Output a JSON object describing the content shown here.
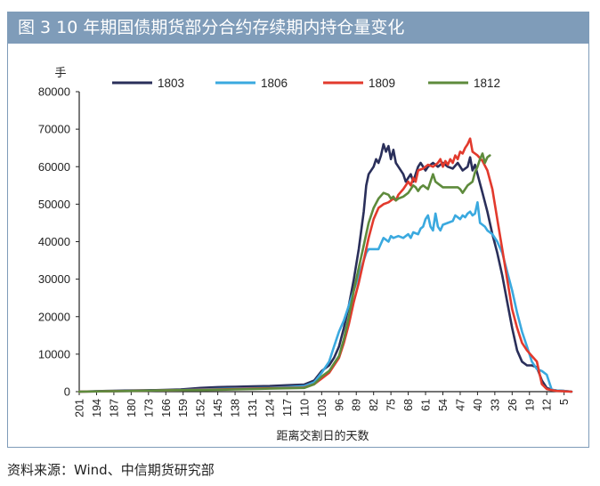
{
  "header": {
    "title": "图 3  10 年期国债期货部分合约存续期内持仓量变化"
  },
  "footer": {
    "source": "资料来源：Wind、中信期货研究部"
  },
  "chart_data": {
    "type": "line",
    "title": "图 3  10 年期国债期货部分合约存续期内持仓量变化",
    "xlabel": "距离交割日的天数",
    "ylabel": "手",
    "ylim": [
      0,
      80000
    ],
    "yticks": [
      "0",
      "10000",
      "20000",
      "30000",
      "40000",
      "50000",
      "60000",
      "70000",
      "80000"
    ],
    "xlim": [
      201,
      2
    ],
    "xticks": [
      "201",
      "194",
      "187",
      "180",
      "173",
      "166",
      "159",
      "152",
      "145",
      "138",
      "131",
      "124",
      "117",
      "110",
      "103",
      "96",
      "89",
      "82",
      "75",
      "68",
      "61",
      "54",
      "47",
      "40",
      "33",
      "26",
      "19",
      "12",
      "5"
    ],
    "legend_position": "top",
    "grid": false,
    "series": [
      {
        "name": "1803",
        "color": "#2a2f5a",
        "points": [
          [
            201,
            0
          ],
          [
            190,
            200
          ],
          [
            180,
            300
          ],
          [
            170,
            400
          ],
          [
            160,
            600
          ],
          [
            152,
            1000
          ],
          [
            145,
            1200
          ],
          [
            138,
            1300
          ],
          [
            131,
            1400
          ],
          [
            124,
            1500
          ],
          [
            117,
            1700
          ],
          [
            110,
            1900
          ],
          [
            106,
            3000
          ],
          [
            103,
            5500
          ],
          [
            100,
            7000
          ],
          [
            98,
            9000
          ],
          [
            96,
            12000
          ],
          [
            94,
            17000
          ],
          [
            92,
            23000
          ],
          [
            90,
            30000
          ],
          [
            88,
            38000
          ],
          [
            86,
            48000
          ],
          [
            85,
            55000
          ],
          [
            84,
            58000
          ],
          [
            82,
            60000
          ],
          [
            81,
            62000
          ],
          [
            80,
            61000
          ],
          [
            79,
            63000
          ],
          [
            78,
            66000
          ],
          [
            77,
            64000
          ],
          [
            76,
            65500
          ],
          [
            75,
            62000
          ],
          [
            74,
            64500
          ],
          [
            73,
            61000
          ],
          [
            72,
            60000
          ],
          [
            70,
            58000
          ],
          [
            69,
            56000
          ],
          [
            68,
            57000
          ],
          [
            67,
            58000
          ],
          [
            66,
            56000
          ],
          [
            65,
            58000
          ],
          [
            64,
            60000
          ],
          [
            63,
            61000
          ],
          [
            62,
            60000
          ],
          [
            61,
            59000
          ],
          [
            60,
            60000
          ],
          [
            58,
            61000
          ],
          [
            56,
            60000
          ],
          [
            54,
            61000
          ],
          [
            52,
            60000
          ],
          [
            50,
            59500
          ],
          [
            48,
            61000
          ],
          [
            46,
            59000
          ],
          [
            44,
            60000
          ],
          [
            43,
            62500
          ],
          [
            42,
            59000
          ],
          [
            41,
            60500
          ],
          [
            40,
            58000
          ],
          [
            38,
            53000
          ],
          [
            36,
            48000
          ],
          [
            34,
            42000
          ],
          [
            32,
            37000
          ],
          [
            30,
            31000
          ],
          [
            28,
            24000
          ],
          [
            26,
            17000
          ],
          [
            24,
            11000
          ],
          [
            22,
            8000
          ],
          [
            20,
            7000
          ],
          [
            18,
            7000
          ],
          [
            16,
            6500
          ],
          [
            14,
            3000
          ],
          [
            12,
            1000
          ],
          [
            10,
            500
          ],
          [
            8,
            300
          ],
          [
            5,
            200
          ],
          [
            2,
            0
          ]
        ]
      },
      {
        "name": "1806",
        "color": "#3aa9df",
        "points": [
          [
            201,
            0
          ],
          [
            190,
            100
          ],
          [
            180,
            200
          ],
          [
            170,
            300
          ],
          [
            160,
            400
          ],
          [
            152,
            600
          ],
          [
            145,
            700
          ],
          [
            138,
            800
          ],
          [
            131,
            900
          ],
          [
            124,
            1000
          ],
          [
            117,
            1200
          ],
          [
            110,
            1500
          ],
          [
            106,
            2500
          ],
          [
            103,
            5000
          ],
          [
            100,
            8000
          ],
          [
            98,
            12000
          ],
          [
            96,
            16000
          ],
          [
            94,
            19000
          ],
          [
            92,
            23000
          ],
          [
            90,
            27000
          ],
          [
            88,
            31000
          ],
          [
            86,
            35000
          ],
          [
            85,
            37000
          ],
          [
            84,
            38000
          ],
          [
            82,
            38000
          ],
          [
            80,
            38000
          ],
          [
            79,
            39500
          ],
          [
            78,
            41000
          ],
          [
            76,
            40000
          ],
          [
            75,
            41500
          ],
          [
            74,
            41000
          ],
          [
            72,
            41500
          ],
          [
            70,
            41000
          ],
          [
            68,
            42000
          ],
          [
            67,
            41000
          ],
          [
            66,
            42500
          ],
          [
            64,
            42000
          ],
          [
            63,
            43500
          ],
          [
            62,
            44000
          ],
          [
            61,
            46000
          ],
          [
            60,
            47000
          ],
          [
            59,
            44000
          ],
          [
            58,
            43000
          ],
          [
            57,
            47500
          ],
          [
            56,
            44000
          ],
          [
            55,
            43000
          ],
          [
            54,
            44500
          ],
          [
            52,
            45000
          ],
          [
            50,
            45500
          ],
          [
            49,
            47000
          ],
          [
            48,
            46500
          ],
          [
            47,
            46000
          ],
          [
            46,
            47000
          ],
          [
            45,
            46500
          ],
          [
            44,
            47500
          ],
          [
            43,
            48000
          ],
          [
            42,
            47000
          ],
          [
            41,
            47500
          ],
          [
            40,
            50500
          ],
          [
            39,
            45000
          ],
          [
            38,
            44500
          ],
          [
            37,
            44000
          ],
          [
            36,
            43000
          ],
          [
            34,
            42000
          ],
          [
            32,
            40000
          ],
          [
            30,
            37000
          ],
          [
            28,
            32000
          ],
          [
            26,
            27000
          ],
          [
            24,
            21000
          ],
          [
            22,
            16000
          ],
          [
            20,
            12000
          ],
          [
            18,
            8000
          ],
          [
            16,
            6000
          ],
          [
            14,
            5500
          ],
          [
            12,
            4500
          ],
          [
            10,
            500
          ],
          [
            8,
            300
          ],
          [
            5,
            200
          ],
          [
            2,
            0
          ]
        ]
      },
      {
        "name": "1809",
        "color": "#e23a2d",
        "points": [
          [
            201,
            0
          ],
          [
            190,
            100
          ],
          [
            180,
            200
          ],
          [
            170,
            300
          ],
          [
            160,
            400
          ],
          [
            152,
            500
          ],
          [
            145,
            600
          ],
          [
            138,
            700
          ],
          [
            131,
            800
          ],
          [
            124,
            900
          ],
          [
            117,
            1000
          ],
          [
            110,
            1100
          ],
          [
            106,
            2000
          ],
          [
            103,
            3500
          ],
          [
            100,
            5000
          ],
          [
            98,
            7000
          ],
          [
            96,
            9000
          ],
          [
            94,
            13000
          ],
          [
            92,
            18000
          ],
          [
            90,
            24000
          ],
          [
            88,
            29000
          ],
          [
            86,
            35000
          ],
          [
            84,
            41000
          ],
          [
            82,
            46000
          ],
          [
            80,
            49000
          ],
          [
            78,
            50000
          ],
          [
            76,
            50500
          ],
          [
            74,
            51500
          ],
          [
            73,
            51000
          ],
          [
            72,
            52500
          ],
          [
            70,
            54000
          ],
          [
            68,
            56000
          ],
          [
            67,
            55000
          ],
          [
            66,
            57000
          ],
          [
            65,
            56000
          ],
          [
            64,
            59000
          ],
          [
            62,
            59500
          ],
          [
            60,
            60500
          ],
          [
            58,
            60000
          ],
          [
            56,
            61000
          ],
          [
            55,
            62000
          ],
          [
            54,
            60000
          ],
          [
            53,
            61500
          ],
          [
            52,
            60500
          ],
          [
            51,
            62000
          ],
          [
            50,
            61000
          ],
          [
            49,
            63000
          ],
          [
            48,
            62000
          ],
          [
            47,
            64000
          ],
          [
            46,
            63500
          ],
          [
            45,
            65000
          ],
          [
            44,
            66000
          ],
          [
            43,
            67500
          ],
          [
            42,
            64000
          ],
          [
            41,
            63500
          ],
          [
            40,
            63000
          ],
          [
            38,
            61500
          ],
          [
            36,
            59000
          ],
          [
            34,
            54000
          ],
          [
            32,
            46000
          ],
          [
            30,
            38000
          ],
          [
            28,
            30000
          ],
          [
            26,
            22000
          ],
          [
            24,
            17000
          ],
          [
            22,
            13000
          ],
          [
            20,
            11000
          ],
          [
            18,
            9500
          ],
          [
            16,
            8000
          ],
          [
            14,
            2000
          ],
          [
            12,
            700
          ],
          [
            10,
            400
          ],
          [
            8,
            200
          ],
          [
            5,
            100
          ],
          [
            2,
            0
          ]
        ]
      },
      {
        "name": "1812",
        "color": "#5e8b3c",
        "points": [
          [
            201,
            0
          ],
          [
            190,
            100
          ],
          [
            180,
            200
          ],
          [
            170,
            300
          ],
          [
            160,
            400
          ],
          [
            152,
            400
          ],
          [
            145,
            500
          ],
          [
            138,
            600
          ],
          [
            131,
            700
          ],
          [
            124,
            800
          ],
          [
            117,
            900
          ],
          [
            110,
            1000
          ],
          [
            106,
            2000
          ],
          [
            103,
            4000
          ],
          [
            100,
            5500
          ],
          [
            98,
            7500
          ],
          [
            96,
            9500
          ],
          [
            94,
            14000
          ],
          [
            92,
            20000
          ],
          [
            90,
            27000
          ],
          [
            88,
            33000
          ],
          [
            86,
            39000
          ],
          [
            84,
            45000
          ],
          [
            82,
            49000
          ],
          [
            80,
            51500
          ],
          [
            78,
            53000
          ],
          [
            76,
            52500
          ],
          [
            75,
            51500
          ],
          [
            74,
            52000
          ],
          [
            73,
            51000
          ],
          [
            72,
            51500
          ],
          [
            70,
            52000
          ],
          [
            68,
            53000
          ],
          [
            66,
            55000
          ],
          [
            65,
            54500
          ],
          [
            64,
            53500
          ],
          [
            63,
            54500
          ],
          [
            62,
            55000
          ],
          [
            60,
            54000
          ],
          [
            59,
            56000
          ],
          [
            58,
            58000
          ],
          [
            57,
            56000
          ],
          [
            56,
            55500
          ],
          [
            55,
            55000
          ],
          [
            54,
            54500
          ],
          [
            52,
            54500
          ],
          [
            50,
            54500
          ],
          [
            48,
            54500
          ],
          [
            47,
            54000
          ],
          [
            46,
            53000
          ],
          [
            45,
            54000
          ],
          [
            44,
            55000
          ],
          [
            43,
            55500
          ],
          [
            42,
            56000
          ],
          [
            41,
            58500
          ],
          [
            40,
            60000
          ],
          [
            39,
            62000
          ],
          [
            38,
            63500
          ],
          [
            37,
            61000
          ],
          [
            36,
            62500
          ],
          [
            35,
            63000
          ]
        ]
      }
    ]
  }
}
